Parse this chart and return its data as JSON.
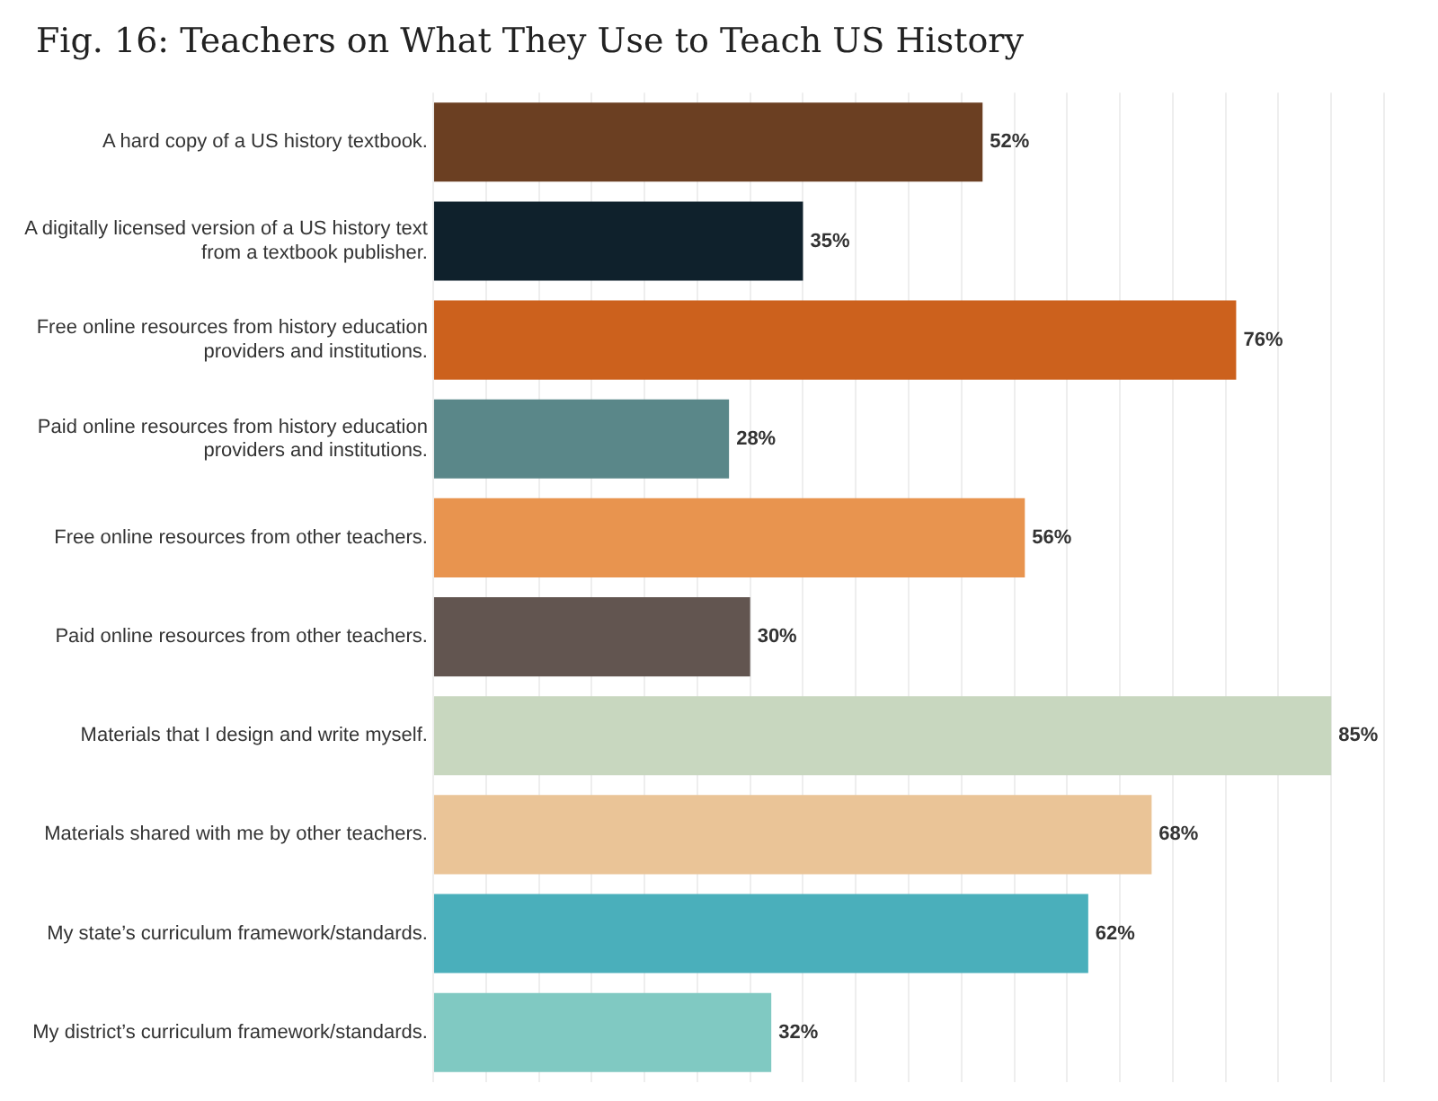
{
  "chart_data": {
    "type": "bar",
    "orientation": "horizontal",
    "title": "Fig. 16: Teachers on What They Use to Teach US History",
    "categories": [
      "A hard copy of a US history textbook.",
      "A digitally licensed version of a US history text from a textbook publisher.",
      "Free online resources from history education providers and institutions.",
      "Paid online resources from history education providers and institutions.",
      "Free online resources from other teachers.",
      "Paid online resources from other teachers.",
      "Materials that I design and write myself.",
      "Materials shared with me by other teachers.",
      "My state’s curriculum framework/standards.",
      "My district’s curriculum framework/standards."
    ],
    "values": [
      52,
      35,
      76,
      28,
      56,
      30,
      85,
      68,
      62,
      32
    ],
    "value_labels": [
      "52%",
      "35%",
      "76%",
      "28%",
      "56%",
      "30%",
      "85%",
      "68%",
      "62%",
      "32%"
    ],
    "colors": [
      "#6b3f22",
      "#0f212c",
      "#cc611d",
      "#5a8789",
      "#e8944f",
      "#625550",
      "#c8d7bf",
      "#eac497",
      "#4aafbb",
      "#80c9c2"
    ],
    "xlim": [
      0,
      90
    ],
    "xticks": [
      {
        "value": 0,
        "label": null
      },
      {
        "value": 5,
        "label": null
      },
      {
        "value": 10,
        "label": null
      },
      {
        "value": 15,
        "label": null
      },
      {
        "value": 20,
        "label": null
      },
      {
        "value": 25,
        "label": null
      },
      {
        "value": 30,
        "label": null
      },
      {
        "value": 35,
        "label": null
      },
      {
        "value": 40,
        "label": null
      },
      {
        "value": 45,
        "label": null
      },
      {
        "value": 50,
        "label": null
      },
      {
        "value": 55,
        "label": null
      },
      {
        "value": 60,
        "label": null
      },
      {
        "value": 65,
        "label": null
      },
      {
        "value": 70,
        "label": null
      },
      {
        "value": 75,
        "label": null
      },
      {
        "value": 80,
        "label": null
      },
      {
        "value": 85,
        "label": null
      },
      {
        "value": 90,
        "label": null
      }
    ],
    "tick_labels": "y",
    "grid": "x",
    "legend": false
  }
}
